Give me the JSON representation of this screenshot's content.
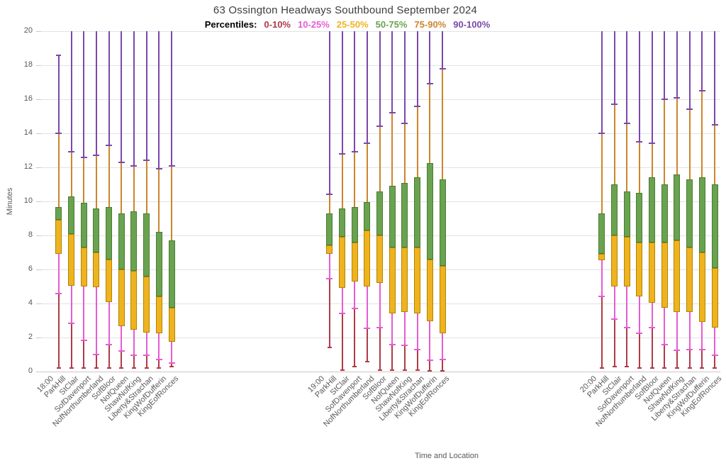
{
  "title": "63 Ossington Headways Southbound September 2024",
  "legend": {
    "label": "Percentiles:",
    "items": [
      {
        "label": "0-10%",
        "color": "#B03A48"
      },
      {
        "label": "10-25%",
        "color": "#E65CD3"
      },
      {
        "label": "25-50%",
        "color": "#EFB31F",
        "border": "#B08500"
      },
      {
        "label": "50-75%",
        "color": "#69A350",
        "border": "#4C7A33"
      },
      {
        "label": "75-90%",
        "color": "#CC852C"
      },
      {
        "label": "90-100%",
        "color": "#7A48AC"
      }
    ]
  },
  "y_axis": {
    "title": "Minutes",
    "min": 0,
    "max": 20,
    "tick_step": 2,
    "ticks": [
      0,
      2,
      4,
      6,
      8,
      10,
      12,
      14,
      16,
      18,
      20
    ]
  },
  "x_axis": {
    "title": "Time and Location"
  },
  "chart_data": {
    "type": "box",
    "unit": "minutes",
    "ylim": [
      0,
      20
    ],
    "grid": true,
    "legend_position": "top",
    "percentile_levels": [
      "min",
      "p10",
      "p25",
      "p50",
      "p75",
      "p90",
      "max"
    ],
    "clipped_max_note": "max value null means whisker extends above the 20-minute axis limit (clipped)",
    "groups": [
      {
        "time": "18:00",
        "stops": [
          {
            "name": "ParkHill",
            "p": [
              0.2,
              4.6,
              6.9,
              8.9,
              9.65,
              14.0,
              18.6
            ]
          },
          {
            "name": "StClair",
            "p": [
              0.2,
              2.85,
              5.05,
              8.1,
              10.3,
              12.9,
              null
            ]
          },
          {
            "name": "SofDavenport",
            "p": [
              0.2,
              1.85,
              5.0,
              7.3,
              9.9,
              12.6,
              null
            ]
          },
          {
            "name": "NofNorthumberland",
            "p": [
              0.2,
              1.0,
              4.95,
              7.0,
              9.6,
              12.7,
              null
            ]
          },
          {
            "name": "SofBloor",
            "p": [
              0.2,
              1.6,
              4.1,
              6.6,
              9.65,
              13.3,
              null
            ]
          },
          {
            "name": "NofQueen",
            "p": [
              0.2,
              1.2,
              2.65,
              6.0,
              9.3,
              12.3,
              null
            ]
          },
          {
            "name": "ShawNofKing",
            "p": [
              0.2,
              0.95,
              2.45,
              5.9,
              9.4,
              12.1,
              null
            ]
          },
          {
            "name": "Liberty&Strachan",
            "p": [
              0.2,
              0.95,
              2.3,
              5.6,
              9.3,
              12.4,
              null
            ]
          },
          {
            "name": "KingWofDufferin",
            "p": [
              0.2,
              0.7,
              2.25,
              4.4,
              8.2,
              11.9,
              null
            ]
          },
          {
            "name": "KingEofRonces",
            "p": [
              0.3,
              0.5,
              1.75,
              3.75,
              7.7,
              12.1,
              null
            ]
          }
        ]
      },
      {
        "time": "19:00",
        "stops": [
          {
            "name": "ParkHill",
            "p": [
              1.4,
              5.45,
              6.9,
              7.4,
              9.3,
              10.4,
              null
            ]
          },
          {
            "name": "StClair",
            "p": [
              0.1,
              3.4,
              4.9,
              7.9,
              9.6,
              12.8,
              null
            ]
          },
          {
            "name": "SofDavenport",
            "p": [
              0.3,
              3.7,
              5.3,
              7.6,
              9.65,
              12.9,
              null
            ]
          },
          {
            "name": "NofNorthumberland",
            "p": [
              0.6,
              2.55,
              5.0,
              8.3,
              9.95,
              13.4,
              null
            ]
          },
          {
            "name": "SofBloor",
            "p": [
              0.1,
              2.6,
              5.2,
              8.0,
              10.6,
              14.4,
              null
            ]
          },
          {
            "name": "NofQueen",
            "p": [
              0.1,
              1.6,
              3.4,
              7.3,
              10.9,
              15.2,
              null
            ]
          },
          {
            "name": "ShawNofKing",
            "p": [
              0.1,
              1.55,
              3.5,
              7.3,
              11.1,
              14.6,
              null
            ]
          },
          {
            "name": "Liberty&Strachan",
            "p": [
              0.1,
              1.3,
              3.4,
              7.3,
              11.4,
              15.6,
              null
            ]
          },
          {
            "name": "KingWofDufferin",
            "p": [
              0.05,
              0.65,
              2.95,
              6.6,
              12.25,
              16.9,
              null
            ]
          },
          {
            "name": "KingEofRonces",
            "p": [
              0.05,
              0.7,
              2.25,
              6.2,
              11.3,
              17.8,
              null
            ]
          }
        ]
      },
      {
        "time": "20:00",
        "stops": [
          {
            "name": "ParkHill",
            "p": [
              0.2,
              4.4,
              6.55,
              6.9,
              9.3,
              14.0,
              null
            ]
          },
          {
            "name": "StClair",
            "p": [
              0.3,
              3.1,
              5.0,
              8.0,
              11.0,
              15.7,
              null
            ]
          },
          {
            "name": "SofDavenport",
            "p": [
              0.3,
              2.6,
              5.0,
              7.9,
              10.6,
              14.6,
              null
            ]
          },
          {
            "name": "NofNorthumberland",
            "p": [
              0.2,
              2.25,
              4.4,
              7.6,
              10.5,
              13.5,
              null
            ]
          },
          {
            "name": "SofBloor",
            "p": [
              0.2,
              2.6,
              4.05,
              7.6,
              11.4,
              13.4,
              null
            ]
          },
          {
            "name": "NofQueen",
            "p": [
              0.2,
              1.6,
              3.75,
              7.6,
              11.0,
              16.0,
              null
            ]
          },
          {
            "name": "ShawNofKing",
            "p": [
              0.2,
              1.25,
              3.5,
              7.7,
              11.6,
              16.1,
              null
            ]
          },
          {
            "name": "Liberty&Strachan",
            "p": [
              0.2,
              1.3,
              3.5,
              7.3,
              11.3,
              15.4,
              null
            ]
          },
          {
            "name": "KingWofDufferin",
            "p": [
              0.2,
              1.3,
              2.9,
              7.0,
              11.4,
              16.5,
              null
            ]
          },
          {
            "name": "KingEofRonces",
            "p": [
              0.2,
              0.95,
              2.6,
              6.1,
              11.0,
              14.5,
              null
            ]
          }
        ]
      }
    ]
  }
}
